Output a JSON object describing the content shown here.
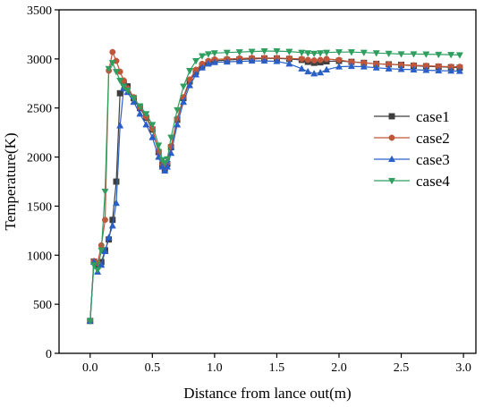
{
  "chart_data": {
    "type": "line",
    "xlabel": "Distance from lance out(m)",
    "ylabel": "Temperature(K)",
    "xlim": [
      -0.25,
      3.1
    ],
    "ylim": [
      0,
      3500
    ],
    "xticks": [
      "0.0",
      "0.5",
      "1.0",
      "1.5",
      "2.0",
      "2.5",
      "3.0"
    ],
    "yticks": [
      "0",
      "500",
      "1000",
      "1500",
      "2000",
      "2500",
      "3000",
      "3500"
    ],
    "grid": false,
    "legend_position": "right",
    "series": [
      {
        "name": "case1",
        "color": "#3d3d3d",
        "marker": "square",
        "x": [
          0,
          0.03,
          0.06,
          0.09,
          0.12,
          0.15,
          0.18,
          0.21,
          0.24,
          0.27,
          0.3,
          0.35,
          0.4,
          0.45,
          0.5,
          0.55,
          0.58,
          0.6,
          0.62,
          0.65,
          0.7,
          0.75,
          0.8,
          0.85,
          0.9,
          0.95,
          1.0,
          1.1,
          1.2,
          1.3,
          1.4,
          1.5,
          1.6,
          1.7,
          1.75,
          1.8,
          1.85,
          1.9,
          2.0,
          2.1,
          2.2,
          2.3,
          2.4,
          2.5,
          2.6,
          2.7,
          2.8,
          2.9,
          2.97
        ],
        "y": [
          330,
          935,
          890,
          930,
          1050,
          1160,
          1360,
          1750,
          2650,
          2760,
          2720,
          2600,
          2500,
          2400,
          2280,
          2050,
          1920,
          1880,
          1930,
          2100,
          2380,
          2600,
          2770,
          2870,
          2930,
          2965,
          2980,
          2990,
          2995,
          3000,
          3005,
          3005,
          3000,
          2990,
          2970,
          2960,
          2965,
          2975,
          2980,
          2970,
          2960,
          2950,
          2945,
          2940,
          2930,
          2925,
          2920,
          2915,
          2910
        ]
      },
      {
        "name": "case2",
        "color": "#c0563a",
        "marker": "circle",
        "x": [
          0,
          0.03,
          0.06,
          0.09,
          0.12,
          0.15,
          0.18,
          0.21,
          0.24,
          0.27,
          0.3,
          0.35,
          0.4,
          0.45,
          0.5,
          0.55,
          0.58,
          0.6,
          0.62,
          0.65,
          0.7,
          0.75,
          0.8,
          0.85,
          0.9,
          0.95,
          1.0,
          1.1,
          1.2,
          1.3,
          1.4,
          1.5,
          1.6,
          1.7,
          1.75,
          1.8,
          1.85,
          1.9,
          2.0,
          2.1,
          2.2,
          2.3,
          2.4,
          2.5,
          2.6,
          2.7,
          2.8,
          2.9,
          2.97
        ],
        "y": [
          330,
          940,
          920,
          1100,
          1360,
          2880,
          3070,
          2980,
          2870,
          2780,
          2700,
          2610,
          2510,
          2410,
          2290,
          2060,
          1930,
          1890,
          1940,
          2110,
          2390,
          2610,
          2790,
          2890,
          2950,
          2980,
          2995,
          3000,
          3005,
          3010,
          3010,
          3010,
          3005,
          3000,
          2990,
          2985,
          2990,
          3000,
          2990,
          2970,
          2960,
          2950,
          2945,
          2940,
          2935,
          2930,
          2925,
          2920,
          2920
        ]
      },
      {
        "name": "case3",
        "color": "#2a5fc8",
        "marker": "triangle-up",
        "x": [
          0,
          0.03,
          0.06,
          0.09,
          0.12,
          0.15,
          0.18,
          0.21,
          0.24,
          0.27,
          0.3,
          0.35,
          0.4,
          0.45,
          0.5,
          0.55,
          0.58,
          0.6,
          0.62,
          0.65,
          0.7,
          0.75,
          0.8,
          0.85,
          0.9,
          0.95,
          1.0,
          1.1,
          1.2,
          1.3,
          1.4,
          1.5,
          1.6,
          1.7,
          1.75,
          1.8,
          1.85,
          1.9,
          2.0,
          2.1,
          2.2,
          2.3,
          2.4,
          2.5,
          2.6,
          2.7,
          2.8,
          2.9,
          2.97
        ],
        "y": [
          330,
          930,
          830,
          900,
          1040,
          1180,
          1300,
          1530,
          2320,
          2700,
          2660,
          2560,
          2440,
          2330,
          2200,
          2000,
          1900,
          1860,
          1900,
          2040,
          2330,
          2560,
          2730,
          2840,
          2910,
          2950,
          2965,
          2970,
          2975,
          2980,
          2980,
          2975,
          2950,
          2900,
          2870,
          2850,
          2860,
          2890,
          2920,
          2925,
          2920,
          2910,
          2900,
          2895,
          2890,
          2885,
          2880,
          2878,
          2875
        ]
      },
      {
        "name": "case4",
        "color": "#2f9e5f",
        "marker": "triangle-down",
        "x": [
          0,
          0.03,
          0.06,
          0.09,
          0.12,
          0.15,
          0.18,
          0.21,
          0.24,
          0.27,
          0.3,
          0.35,
          0.4,
          0.45,
          0.5,
          0.55,
          0.58,
          0.6,
          0.62,
          0.65,
          0.7,
          0.75,
          0.8,
          0.85,
          0.9,
          0.95,
          1.0,
          1.1,
          1.2,
          1.3,
          1.4,
          1.5,
          1.6,
          1.7,
          1.75,
          1.8,
          1.85,
          1.9,
          2.0,
          2.1,
          2.2,
          2.3,
          2.4,
          2.5,
          2.6,
          2.7,
          2.8,
          2.9,
          2.97
        ],
        "y": [
          330,
          900,
          850,
          1050,
          1650,
          2900,
          2960,
          2870,
          2780,
          2720,
          2680,
          2600,
          2520,
          2440,
          2330,
          2120,
          1970,
          1940,
          1980,
          2200,
          2480,
          2720,
          2880,
          2980,
          3030,
          3050,
          3060,
          3065,
          3070,
          3075,
          3080,
          3080,
          3075,
          3065,
          3060,
          3055,
          3060,
          3065,
          3070,
          3070,
          3065,
          3060,
          3055,
          3050,
          3050,
          3048,
          3045,
          3043,
          3040
        ]
      }
    ]
  }
}
